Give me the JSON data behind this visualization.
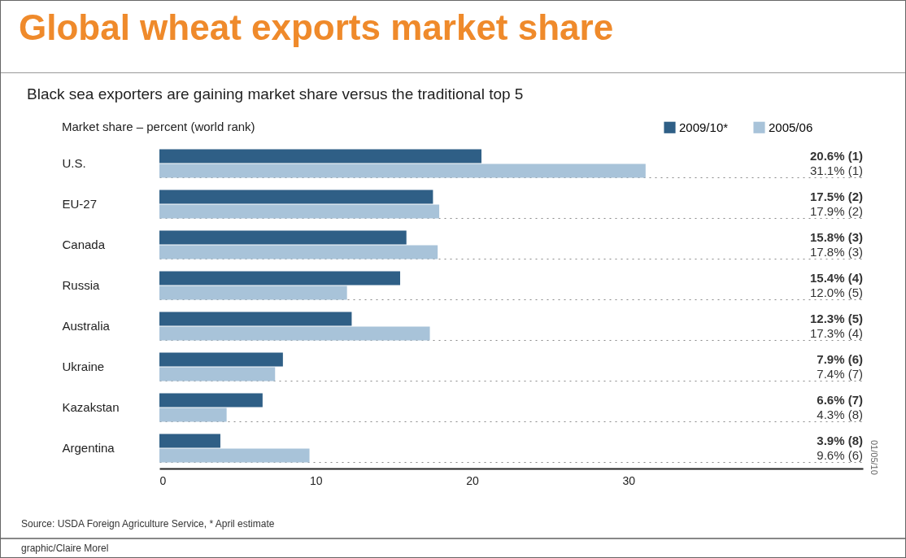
{
  "chart_data": {
    "type": "bar",
    "orientation": "horizontal",
    "title": "Global wheat exports market share",
    "subtitle": "Black sea exporters are gaining market share versus the traditional top 5",
    "xlabel": "Market share – percent (world rank)",
    "categories": [
      "U.S.",
      "EU-27",
      "Canada",
      "Russia",
      "Australia",
      "Ukraine",
      "Kazakstan",
      "Argentina"
    ],
    "series": [
      {
        "name": "2009/10*",
        "color": "#2f5f86",
        "values": [
          20.6,
          17.5,
          15.8,
          15.4,
          12.3,
          7.9,
          6.6,
          3.9
        ],
        "value_labels": [
          "20.6% (1)",
          "17.5% (2)",
          "15.8% (3)",
          "15.4% (4)",
          "12.3% (5)",
          "7.9% (6)",
          "6.6% (7)",
          "3.9% (8)"
        ]
      },
      {
        "name": "2005/06",
        "color": "#a8c3d9",
        "values": [
          31.1,
          17.9,
          17.8,
          12.0,
          17.3,
          7.4,
          4.3,
          9.6
        ],
        "value_labels": [
          "31.1% (1)",
          "17.9% (2)",
          "17.8% (3)",
          "12.0% (5)",
          "17.3% (4)",
          "7.4% (7)",
          "4.3% (8)",
          "9.6% (6)"
        ]
      }
    ],
    "xlim": [
      0,
      45
    ],
    "xticks": [
      0,
      10,
      20,
      30
    ],
    "legend": "top right",
    "annotations": [
      "Source: USDA Foreign Agriculture Service, * April estimate",
      "graphic/Claire Morel",
      "01/05/10"
    ]
  }
}
